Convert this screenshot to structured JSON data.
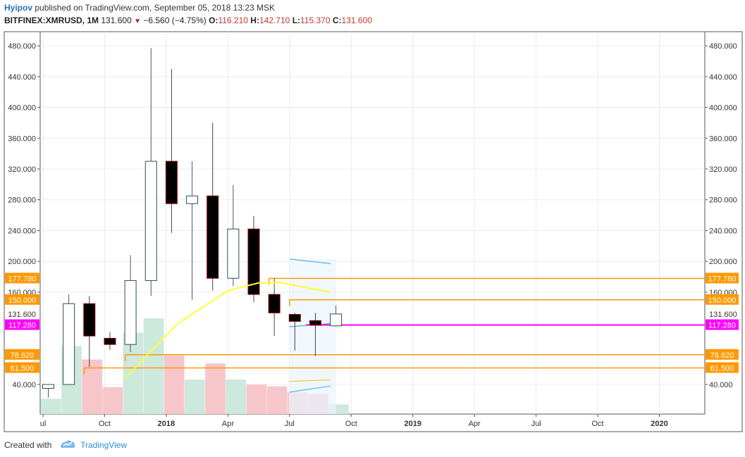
{
  "header": {
    "author": "Hyipov",
    "published": "published on TradingView.com, September 05, 2018 13:23 MSK",
    "symbol": "BITFINEX:XMRUSD, 1M",
    "last": "131.600",
    "change": "−6.560 (−4.75%)",
    "o_label": "O:",
    "o_value": "116.210",
    "h_label": "H:",
    "h_value": "142.710",
    "l_label": "L:",
    "l_value": "115.370",
    "c_label": "C:",
    "c_value": "131.600"
  },
  "footer": {
    "created_with": "Created with",
    "brand": "TradingView"
  },
  "colors": {
    "up_body": "#ffffff",
    "up_border": "#2f4f4f",
    "down_body": "#000000",
    "down_border": "#8b0000",
    "vol_up": "#cde8dd",
    "vol_down": "#f7c6cb",
    "sma": "#ffff33",
    "orange": "#ff9900",
    "magenta": "#ff00ff",
    "channel": "#3aa0e8",
    "grid": "#e8ecef"
  },
  "chart_data": {
    "type": "candlestick",
    "title": "",
    "yticks": [
      "480.000",
      "440.000",
      "400.000",
      "360.000",
      "320.000",
      "280.000",
      "240.000",
      "200.000",
      "160.000",
      "40.000"
    ],
    "ytick_values": [
      480,
      440,
      400,
      360,
      320,
      280,
      240,
      200,
      160,
      40
    ],
    "xticks": [
      "ul",
      "Oct",
      "2018",
      "Apr",
      "Jul",
      "Oct",
      "2019",
      "Apr",
      "Jul",
      "Oct",
      "2020"
    ],
    "xtick_index": [
      0,
      3,
      6,
      9,
      12,
      15,
      18,
      21,
      24,
      27,
      30
    ],
    "bold_xticks": [
      "2018",
      "2019",
      "2020"
    ],
    "candles": [
      {
        "o": 35,
        "h": 40,
        "l": 23,
        "c": 40
      },
      {
        "o": 40,
        "h": 157,
        "l": 40,
        "c": 145
      },
      {
        "o": 145,
        "h": 155,
        "l": 63,
        "c": 103
      },
      {
        "o": 100,
        "h": 108,
        "l": 85,
        "c": 92
      },
      {
        "o": 92,
        "h": 208,
        "l": 82,
        "c": 175
      },
      {
        "o": 175,
        "h": 477,
        "l": 155,
        "c": 330
      },
      {
        "o": 330,
        "h": 450,
        "l": 237,
        "c": 275
      },
      {
        "o": 275,
        "h": 330,
        "l": 150,
        "c": 285
      },
      {
        "o": 285,
        "h": 380,
        "l": 162,
        "c": 178
      },
      {
        "o": 178,
        "h": 299,
        "l": 168,
        "c": 242
      },
      {
        "o": 242,
        "h": 259,
        "l": 147,
        "c": 157
      },
      {
        "o": 157,
        "h": 178,
        "l": 103,
        "c": 133
      },
      {
        "o": 131,
        "h": 133,
        "l": 84,
        "c": 122
      },
      {
        "o": 123,
        "h": 133,
        "l": 77,
        "c": 117
      },
      {
        "o": 116.21,
        "h": 142.71,
        "l": 115.37,
        "c": 131.6
      }
    ],
    "volume_heights": [
      0.16,
      0.71,
      0.57,
      0.28,
      0.85,
      1.0,
      0.61,
      0.36,
      0.53,
      0.36,
      0.31,
      0.29,
      0.23,
      0.21,
      0.1
    ],
    "sma_line": [
      [
        4,
        48
      ],
      [
        6.5,
        118
      ],
      [
        9,
        162
      ],
      [
        10.5,
        172
      ],
      [
        11.5,
        172.5
      ],
      [
        13,
        165
      ],
      [
        14,
        160
      ]
    ],
    "horizontal_levels": [
      {
        "value": 177.78,
        "label": "177.780",
        "color": "orange",
        "from": 11
      },
      {
        "value": 150.0,
        "label": "150.000",
        "color": "orange",
        "from": 12
      },
      {
        "value": 117.28,
        "label": "117.280",
        "color": "magenta",
        "from": 12.8
      },
      {
        "value": 78.62,
        "label": "78.620",
        "color": "orange",
        "from": 4
      },
      {
        "value": 61.5,
        "label": "61.500",
        "color": "orange",
        "from": 2
      }
    ],
    "last_price_label": "131.600",
    "last_price_value": 131.6,
    "channel_upper": [
      [
        12,
        203
      ],
      [
        14,
        197
      ]
    ],
    "channel_lower": [
      [
        12,
        30
      ],
      [
        14,
        38
      ]
    ],
    "channel_mid": [
      [
        12,
        44
      ],
      [
        14,
        46
      ]
    ],
    "channel_inner": [
      [
        12,
        115
      ],
      [
        14,
        119
      ]
    ],
    "channel_start_index": 12,
    "channel_end_index": 14
  }
}
